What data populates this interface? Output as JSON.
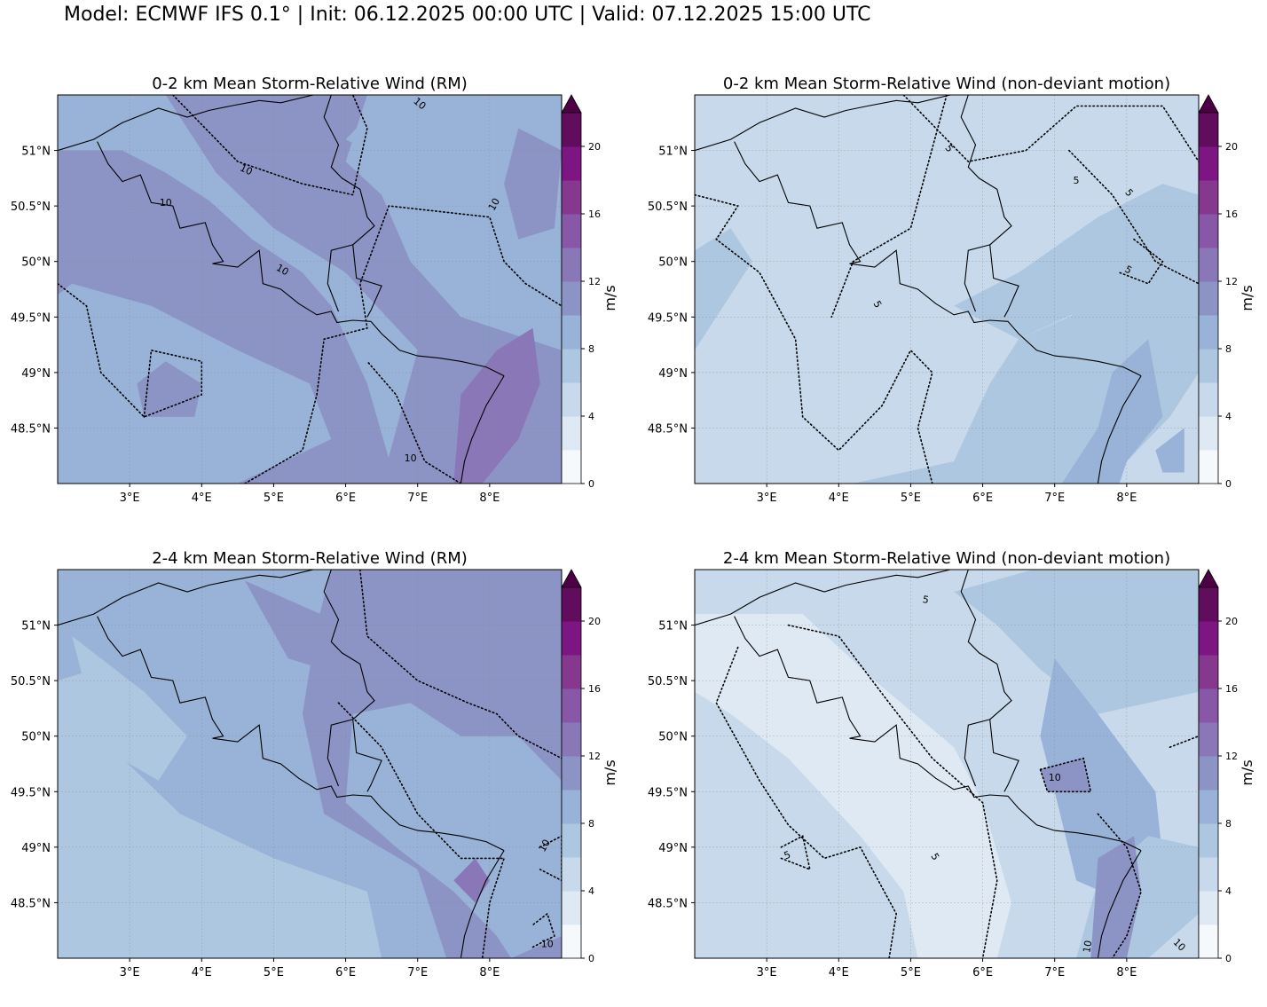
{
  "suptitle": "Model: ECMWF IFS 0.1° | Init: 06.12.2025 00:00 UTC | Valid: 07.12.2025 15:00 UTC",
  "colormap": {
    "levels": [
      0,
      2,
      4,
      6,
      8,
      10,
      12,
      14,
      16,
      18,
      20,
      22
    ],
    "colors": [
      "#f5f9fc",
      "#dfe9f3",
      "#c7d9ea",
      "#aec7e0",
      "#99b2d7",
      "#8c94c6",
      "#8a77b8",
      "#8857a8",
      "#86388f",
      "#7d1683",
      "#620c5d"
    ],
    "extend_color": "#4d0045",
    "ticks": [
      "0",
      "4",
      "8",
      "12",
      "16",
      "20"
    ],
    "label": "m/s"
  },
  "axes": {
    "x_ticks": [
      "3°E",
      "4°E",
      "5°E",
      "6°E",
      "7°E",
      "8°E"
    ],
    "y_ticks": [
      "51°N",
      "50.5°N",
      "50°N",
      "49.5°N",
      "49°N",
      "48.5°N"
    ],
    "lon_range": [
      2.0,
      9.0
    ],
    "lat_range": [
      48.0,
      51.5
    ]
  },
  "panels": [
    {
      "title": "0-2 km Mean Storm-Relative Wind (RM)",
      "contour_level": "10",
      "contour_labels": [
        "10",
        "10",
        "10",
        "10",
        "10",
        "10"
      ]
    },
    {
      "title": "0-2 km Mean Storm-Relative Wind (non-deviant motion)",
      "contour_level": "5",
      "contour_labels": [
        "5",
        "5",
        "5",
        "5",
        "5"
      ]
    },
    {
      "title": "2-4 km Mean Storm-Relative Wind (RM)",
      "contour_level": "10",
      "contour_labels": [
        "10",
        "10"
      ]
    },
    {
      "title": "2-4 km Mean Storm-Relative Wind (non-deviant motion)",
      "contour_level": "5 / 10",
      "contour_labels": [
        "5",
        "5",
        "5",
        "10",
        "10",
        "10"
      ]
    }
  ]
}
